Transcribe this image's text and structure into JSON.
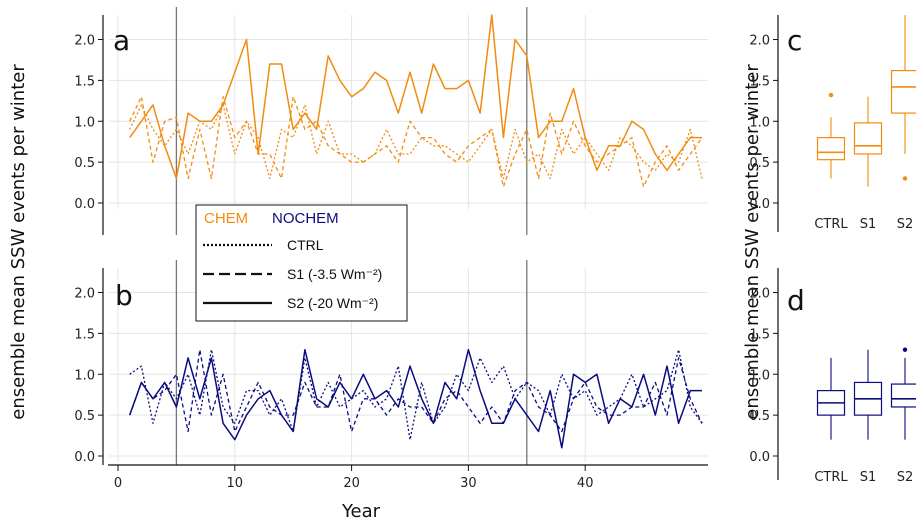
{
  "figure": {
    "ylabel": "ensemble mean SSW events per winter",
    "xlabel": "Year",
    "colors": {
      "chem": "#F28C0F",
      "nochem": "#0B0B80"
    }
  },
  "legend": {
    "chem_label": "CHEM",
    "nochem_label": "NOCHEM",
    "entries": [
      {
        "label": "CTRL",
        "style": "dotted"
      },
      {
        "label": "S1 (-3.5 Wm⁻²)",
        "style": "dashed"
      },
      {
        "label": "S2 (-20 Wm⁻²)",
        "style": "solid"
      }
    ]
  },
  "chart_data": [
    {
      "panel": "a",
      "type": "line",
      "group": "CHEM",
      "xlim": [
        0,
        50
      ],
      "ylim": [
        0,
        2.3
      ],
      "yticks": [
        "0.0",
        "0.5",
        "1.0",
        "1.5",
        "2.0"
      ],
      "vlines": [
        5,
        35
      ],
      "series": [
        {
          "name": "CTRL",
          "style": "dotted",
          "x": [
            1,
            2,
            3,
            4,
            5,
            6,
            7,
            8,
            9,
            10,
            11,
            12,
            13,
            14,
            15,
            16,
            17,
            18,
            19,
            20,
            21,
            22,
            23,
            24,
            25,
            26,
            27,
            28,
            29,
            30,
            31,
            32,
            33,
            34,
            35,
            36,
            37,
            38,
            39,
            40,
            41,
            42,
            43,
            44,
            45,
            46,
            47,
            48,
            49,
            50
          ],
          "y": [
            0.9,
            1.2,
            0.9,
            0.7,
            0.9,
            0.6,
            1.0,
            0.9,
            1.2,
            0.6,
            1.0,
            0.8,
            0.3,
            0.9,
            0.8,
            1.2,
            0.6,
            1.0,
            0.6,
            0.6,
            0.5,
            0.6,
            0.9,
            0.6,
            0.6,
            0.8,
            0.7,
            0.7,
            0.6,
            0.5,
            0.7,
            0.9,
            0.3,
            0.9,
            0.5,
            0.6,
            0.3,
            0.9,
            0.6,
            0.8,
            0.6,
            0.4,
            0.8,
            0.7,
            0.5,
            0.4,
            0.6,
            0.5,
            0.9,
            0.3
          ]
        },
        {
          "name": "S1",
          "style": "dashed",
          "x": [
            1,
            2,
            3,
            4,
            5,
            6,
            7,
            8,
            9,
            10,
            11,
            12,
            13,
            14,
            15,
            16,
            17,
            18,
            19,
            20,
            21,
            22,
            23,
            24,
            25,
            26,
            27,
            28,
            29,
            30,
            31,
            32,
            33,
            34,
            35,
            36,
            37,
            38,
            39,
            40,
            41,
            42,
            43,
            44,
            45,
            46,
            47,
            48,
            49,
            50
          ],
          "y": [
            1.0,
            1.3,
            0.5,
            1.0,
            1.05,
            0.3,
            0.9,
            0.3,
            1.3,
            0.8,
            1.0,
            0.6,
            0.6,
            0.3,
            1.3,
            0.9,
            1.0,
            0.7,
            0.6,
            0.5,
            0.5,
            0.6,
            0.7,
            0.5,
            1.0,
            0.8,
            0.8,
            0.6,
            0.5,
            0.7,
            0.8,
            0.9,
            0.2,
            0.6,
            0.9,
            0.3,
            1.1,
            0.6,
            1.0,
            0.7,
            0.5,
            0.6,
            0.7,
            0.8,
            0.2,
            0.5,
            0.7,
            0.4,
            0.6,
            0.8
          ]
        },
        {
          "name": "S2",
          "style": "solid",
          "x": [
            1,
            2,
            3,
            4,
            5,
            6,
            7,
            8,
            9,
            10,
            11,
            12,
            13,
            14,
            15,
            16,
            17,
            18,
            19,
            20,
            21,
            22,
            23,
            24,
            25,
            26,
            27,
            28,
            29,
            30,
            31,
            32,
            33,
            34,
            35,
            36,
            37,
            38,
            39,
            40,
            41,
            42,
            43,
            44,
            45,
            46,
            47,
            48,
            49,
            50
          ],
          "y": [
            0.8,
            1.0,
            1.2,
            0.7,
            0.3,
            1.1,
            1.0,
            1.0,
            1.2,
            1.6,
            2.0,
            0.6,
            1.7,
            1.7,
            0.9,
            1.1,
            0.9,
            1.8,
            1.5,
            1.3,
            1.4,
            1.6,
            1.5,
            1.1,
            1.6,
            1.1,
            1.7,
            1.4,
            1.4,
            1.5,
            1.1,
            2.3,
            0.8,
            2.0,
            1.8,
            0.8,
            1.0,
            1.0,
            1.4,
            0.8,
            0.4,
            0.7,
            0.7,
            1.0,
            0.9,
            0.6,
            0.4,
            0.6,
            0.8,
            0.8
          ]
        }
      ]
    },
    {
      "panel": "b",
      "type": "line",
      "group": "NOCHEM",
      "xlim": [
        0,
        50
      ],
      "ylim": [
        0,
        2.3
      ],
      "xticks": [
        "0",
        "10",
        "20",
        "30",
        "40"
      ],
      "yticks": [
        "0.0",
        "0.5",
        "1.0",
        "1.5",
        "2.0"
      ],
      "vlines": [
        5,
        35
      ],
      "series": [
        {
          "name": "CTRL",
          "style": "dotted",
          "x": [
            1,
            2,
            3,
            4,
            5,
            6,
            7,
            8,
            9,
            10,
            11,
            12,
            13,
            14,
            15,
            16,
            17,
            18,
            19,
            20,
            21,
            22,
            23,
            24,
            25,
            26,
            27,
            28,
            29,
            30,
            31,
            32,
            33,
            34,
            35,
            36,
            37,
            38,
            39,
            40,
            41,
            42,
            43,
            44,
            45,
            46,
            47,
            48,
            49,
            50
          ],
          "y": [
            1.0,
            1.1,
            0.4,
            0.9,
            0.7,
            1.0,
            0.5,
            1.3,
            0.6,
            0.4,
            0.8,
            0.8,
            0.5,
            0.7,
            0.3,
            1.2,
            0.6,
            0.9,
            0.6,
            0.7,
            0.8,
            0.6,
            0.7,
            1.1,
            0.2,
            0.9,
            0.4,
            0.6,
            1.0,
            0.8,
            1.2,
            0.9,
            1.1,
            0.7,
            0.9,
            0.8,
            0.5,
            1.0,
            0.7,
            0.8,
            0.5,
            0.6,
            0.7,
            1.0,
            0.6,
            0.7,
            0.8,
            1.3,
            0.6,
            0.4
          ]
        },
        {
          "name": "S1",
          "style": "dashed",
          "x": [
            1,
            2,
            3,
            4,
            5,
            6,
            7,
            8,
            9,
            10,
            11,
            12,
            13,
            14,
            15,
            16,
            17,
            18,
            19,
            20,
            21,
            22,
            23,
            24,
            25,
            26,
            27,
            28,
            29,
            30,
            31,
            32,
            33,
            34,
            35,
            36,
            37,
            38,
            39,
            40,
            41,
            42,
            43,
            44,
            45,
            46,
            47,
            48,
            49,
            50
          ],
          "y": [
            0.5,
            0.9,
            0.7,
            0.8,
            1.0,
            0.3,
            1.3,
            0.5,
            1.0,
            0.3,
            0.6,
            0.9,
            0.6,
            0.5,
            0.5,
            0.9,
            0.6,
            0.6,
            1.0,
            0.3,
            0.7,
            0.7,
            0.5,
            0.7,
            0.6,
            0.6,
            0.4,
            0.7,
            0.8,
            0.6,
            0.4,
            0.6,
            0.4,
            0.8,
            0.9,
            0.6,
            0.5,
            0.3,
            0.7,
            0.9,
            0.6,
            0.5,
            0.5,
            0.6,
            0.6,
            0.9,
            0.5,
            1.2,
            0.7,
            0.4
          ]
        },
        {
          "name": "S2",
          "style": "solid",
          "x": [
            1,
            2,
            3,
            4,
            5,
            6,
            7,
            8,
            9,
            10,
            11,
            12,
            13,
            14,
            15,
            16,
            17,
            18,
            19,
            20,
            21,
            22,
            23,
            24,
            25,
            26,
            27,
            28,
            29,
            30,
            31,
            32,
            33,
            34,
            35,
            36,
            37,
            38,
            39,
            40,
            41,
            42,
            43,
            44,
            45,
            46,
            47,
            48,
            49,
            50
          ],
          "y": [
            0.5,
            0.9,
            0.7,
            0.9,
            0.6,
            1.2,
            0.7,
            1.2,
            0.4,
            0.2,
            0.5,
            0.7,
            0.8,
            0.5,
            0.3,
            1.3,
            0.7,
            0.6,
            0.9,
            0.7,
            1.0,
            0.7,
            0.8,
            0.6,
            1.1,
            0.7,
            0.4,
            0.9,
            0.7,
            1.3,
            0.8,
            0.4,
            0.4,
            0.7,
            0.5,
            0.3,
            0.8,
            0.1,
            1.0,
            0.9,
            1.0,
            0.4,
            0.7,
            0.6,
            1.0,
            0.5,
            1.1,
            0.4,
            0.8,
            0.8
          ]
        }
      ]
    },
    {
      "panel": "c",
      "type": "box",
      "group": "CHEM",
      "ylim": [
        0,
        2.3
      ],
      "yticks": [
        "0.0",
        "0.5",
        "1.0",
        "1.5",
        "2.0"
      ],
      "categories": [
        "CTRL",
        "S1",
        "S2"
      ],
      "boxes": [
        {
          "name": "CTRL",
          "whislo": 0.3,
          "q1": 0.53,
          "med": 0.62,
          "q3": 0.8,
          "whishi": 1.05,
          "fliers": [
            1.32
          ]
        },
        {
          "name": "S1",
          "whislo": 0.2,
          "q1": 0.6,
          "med": 0.7,
          "q3": 0.98,
          "whishi": 1.3,
          "fliers": []
        },
        {
          "name": "S2",
          "whislo": 0.6,
          "q1": 1.1,
          "med": 1.42,
          "q3": 1.62,
          "whishi": 2.3,
          "fliers": [
            0.3
          ]
        }
      ]
    },
    {
      "panel": "d",
      "type": "box",
      "group": "NOCHEM",
      "ylim": [
        0,
        2.3
      ],
      "yticks": [
        "0.0",
        "0.5",
        "1.0",
        "1.5",
        "2.0"
      ],
      "categories": [
        "CTRL",
        "S1",
        "S2"
      ],
      "boxes": [
        {
          "name": "CTRL",
          "whislo": 0.2,
          "q1": 0.5,
          "med": 0.65,
          "q3": 0.8,
          "whishi": 1.2,
          "fliers": []
        },
        {
          "name": "S1",
          "whislo": 0.2,
          "q1": 0.5,
          "med": 0.7,
          "q3": 0.9,
          "whishi": 1.3,
          "fliers": []
        },
        {
          "name": "S2",
          "whislo": 0.2,
          "q1": 0.6,
          "med": 0.7,
          "q3": 0.88,
          "whishi": 1.2,
          "fliers": [
            1.3
          ]
        }
      ]
    }
  ]
}
